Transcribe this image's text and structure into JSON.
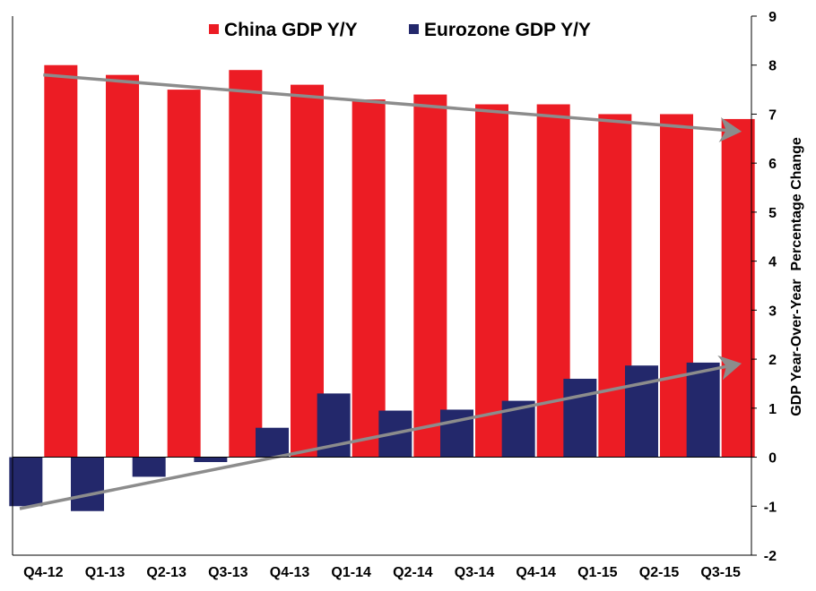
{
  "chart_data": {
    "type": "bar",
    "title": "",
    "xlabel": "",
    "ylabel": "GDP Year-Over-Year  Percentage Change",
    "ylim": [
      -2,
      9
    ],
    "yticks": [
      -2,
      -1,
      0,
      1,
      2,
      3,
      4,
      5,
      6,
      7,
      8,
      9
    ],
    "y_axis_side": "right",
    "grid": false,
    "legend_position": "top-center",
    "categories": [
      "Q4-12",
      "Q1-13",
      "Q2-13",
      "Q3-13",
      "Q4-13",
      "Q1-14",
      "Q2-14",
      "Q3-14",
      "Q4-14",
      "Q1-15",
      "Q2-15",
      "Q3-15"
    ],
    "series": [
      {
        "name": "China GDP Y/Y",
        "color": "#ec1c24",
        "values": [
          8.0,
          7.8,
          7.5,
          7.9,
          7.6,
          7.3,
          7.4,
          7.2,
          7.2,
          7.0,
          7.0,
          6.9
        ]
      },
      {
        "name": "Eurozone GDP Y/Y",
        "color": "#23286b",
        "values": [
          -1.0,
          -1.1,
          -0.4,
          -0.1,
          0.6,
          1.3,
          0.95,
          0.97,
          1.15,
          1.6,
          1.87,
          1.93
        ]
      }
    ],
    "trend_arrows": [
      {
        "series": "China GDP Y/Y",
        "from": {
          "x": "Q4-12",
          "y": 7.8
        },
        "to": {
          "x": "Q3-15",
          "y": 6.65
        },
        "color": "#8c8c8c"
      },
      {
        "series": "Eurozone GDP Y/Y",
        "from": {
          "x": "Q4-12",
          "y": -1.05
        },
        "to": {
          "x": "Q3-15",
          "y": 1.9
        },
        "color": "#8c8c8c"
      }
    ]
  }
}
